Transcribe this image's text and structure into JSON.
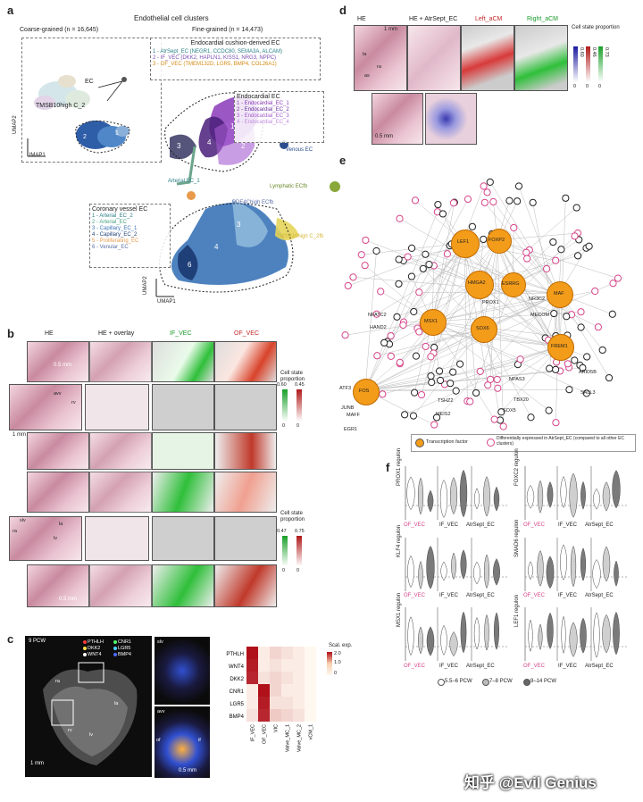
{
  "panel_a": {
    "label": "a",
    "title": "Endothelial cell clusters",
    "coarse_label": "Coarse-grained (n = 16,645)",
    "fine_label": "Fine-grained (n = 14,473)",
    "cushion_title": "Endocardial cushion-derived EC",
    "cushion_items": [
      "1 - AtrSept_EC (NEGR1, CCDC80, SEMA3A, ALCAM)",
      "2 - IF_VEC (DKK2, HAPLN1, KISS1, NRG3, NPPC)",
      "3 - OF_VEC (TMEM132D, LGR5, BMP4, COL26A1)"
    ],
    "endocardial_title": "Endocardial EC",
    "endocardial_items": [
      "1 - Endocardial_EC_1",
      "2 - Endocardial_EC_2",
      "3 - Endocardial_EC_3",
      "4 - Endocardial_EC_4"
    ],
    "coronary_title": "Coronary vessel EC",
    "coronary_items": [
      "1 - Arterial_EC_2",
      "2 - Arterial_EC",
      "3 - Capillary_EC_1",
      "4 - Capillary_EC_2",
      "5 - Proliferating_EC",
      "6 - Venular_EC"
    ],
    "labels": {
      "ec": "EC",
      "tmsb": "TMSB10high C_2",
      "venous": "Venous EC",
      "arterial1": "Arterial EC_1",
      "lymphatic": "Lymphatic ECfb",
      "pde4c": "PDE4Chigh ECfb",
      "tmsb2": "TMSB10high C_2fb",
      "umap1": "UMAP1",
      "umap2": "UMAP2",
      "umap1b": "UMAP1",
      "umap2b": "UMAP2"
    }
  },
  "panel_b": {
    "label": "b",
    "col_titles": [
      "HE",
      "HE + overlay",
      "IF_VEC",
      "OF_VEC"
    ],
    "legend_title": "Cell state proportion",
    "legend_top": {
      "green_max": "0.60",
      "red_max": "0.45",
      "zero1": "0",
      "zero2": "0"
    },
    "legend_bottom": {
      "green_max": "0.47",
      "red_max": "0.75",
      "zero1": "0",
      "zero2": "0"
    },
    "scale_1mm": "1 mm",
    "scale_05mm": "0.5 mm",
    "letters": [
      "A",
      "B",
      "C",
      "D"
    ],
    "anatomy": [
      "avv",
      "rv",
      "slv",
      "ra",
      "lv",
      "la"
    ]
  },
  "panel_c": {
    "label": "c",
    "pcw": "9 PCW",
    "genes_left": [
      "PTHLH",
      "DKK2",
      "WNT4"
    ],
    "genes_right": [
      "CNR1",
      "LGR5",
      "BMP4"
    ],
    "gene_colors": [
      "#ff3b3b",
      "#ffe14a",
      "#ffffff",
      "#4cff6a",
      "#4fd1ff",
      "#4d6bff"
    ],
    "anatomy": [
      "ra",
      "la",
      "rv",
      "lv",
      "slv",
      "avv",
      "of",
      "if"
    ],
    "scale_1mm": "1 mm",
    "scale_05mm": "0.5 mm",
    "heatmap": {
      "title": "Scal. exp.",
      "legend_ticks": [
        "2.0",
        "1.0",
        "0"
      ],
      "rows": [
        "PTHLH",
        "WNT4",
        "DKK2",
        "CNR1",
        "LGR5",
        "BMP4"
      ],
      "cols": [
        "IF_VEC",
        "OF_VEC",
        "VIC",
        "Valve_MC_1",
        "Valve_MC_2",
        "vCM_1"
      ],
      "values": [
        [
          2.0,
          0.1,
          0.3,
          0.2,
          0.1,
          0.0
        ],
        [
          1.9,
          0.1,
          0.2,
          0.1,
          0.1,
          0.0
        ],
        [
          1.8,
          0.2,
          0.3,
          0.2,
          0.1,
          0.0
        ],
        [
          0.1,
          2.0,
          0.3,
          0.1,
          0.1,
          0.0
        ],
        [
          0.1,
          1.9,
          0.2,
          0.2,
          0.1,
          0.0
        ],
        [
          0.2,
          1.8,
          0.4,
          0.3,
          0.2,
          0.0
        ]
      ]
    }
  },
  "panel_d": {
    "label": "d",
    "titles": [
      "HE",
      "HE + AtrSept_EC",
      "Left_aCM",
      "Right_aCM"
    ],
    "legend_title": "Cell state proportion",
    "legend_vals": [
      "0.60",
      "0.46",
      "0.73"
    ],
    "legend_zeros": [
      "0",
      "0",
      "0"
    ],
    "scale_1mm": "1 mm",
    "scale_05mm": "0.5 mm",
    "anatomy": [
      "la",
      "ra",
      "as"
    ]
  },
  "panel_e": {
    "label": "e",
    "tf_nodes": [
      "LEF1",
      "FOXP2",
      "HMGA2",
      "ESRRG",
      "MAF",
      "MSX1",
      "SOX6",
      "FREM1",
      "FOS"
    ],
    "small_labels": [
      "PROX1",
      "NR3C2",
      "MECOM",
      "NFATC2",
      "HAND2",
      "ARID5B",
      "SALL3",
      "NPAS3",
      "TSHZ2",
      "TBX20",
      "MEIS2",
      "SOX5",
      "ATF3",
      "JUNB",
      "MAFF",
      "EGR1"
    ],
    "legend_tf": "Transcription factor",
    "legend_de": "Differentially expressed in AtrSept_EC (compared to all other EC clusters)"
  },
  "panel_f": {
    "label": "f",
    "regulons": [
      "PROX1 regulon",
      "FOXC2 regulon",
      "KLF4 regulon",
      "SMAD6 regulon",
      "MSX1 regulon",
      "LEF1 regulon"
    ],
    "groups": [
      "OF_VEC",
      "IF_VEC",
      "AtrSept_EC"
    ],
    "group_colors": [
      "#d6458a",
      "#333333",
      "#333333"
    ],
    "legend": [
      "5.5–6 PCW",
      "7–8 PCW",
      "9–14 PCW"
    ]
  },
  "watermark": "知乎 @Evil Genius"
}
